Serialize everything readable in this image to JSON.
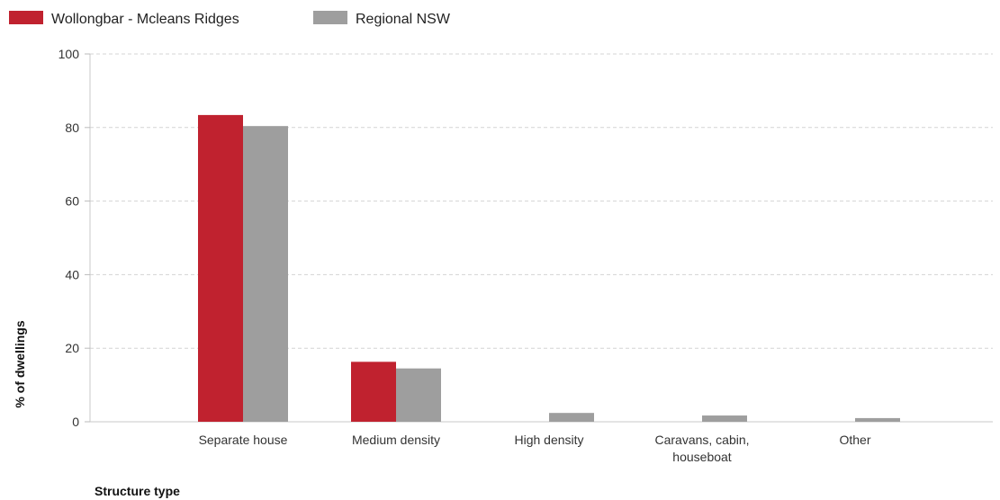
{
  "chart_data": {
    "type": "bar",
    "title": "",
    "xlabel": "Structure type",
    "ylabel": "% of dwellings",
    "ylim": [
      0,
      100
    ],
    "yticks": [
      0,
      20,
      40,
      60,
      80,
      100
    ],
    "grid": true,
    "legend_position": "top-left",
    "categories": [
      [
        "Separate house"
      ],
      [
        "Medium density"
      ],
      [
        "High density"
      ],
      [
        "Caravans, cabin,",
        "houseboat"
      ],
      [
        "Other"
      ]
    ],
    "series": [
      {
        "name": "Wollongbar - Mcleans Ridges",
        "color": "#c0222f",
        "values": [
          83.4,
          16.3,
          0,
          0,
          0
        ]
      },
      {
        "name": "Regional NSW",
        "color": "#9e9e9e",
        "values": [
          80.4,
          14.5,
          2.4,
          1.7,
          1.0
        ]
      }
    ]
  }
}
